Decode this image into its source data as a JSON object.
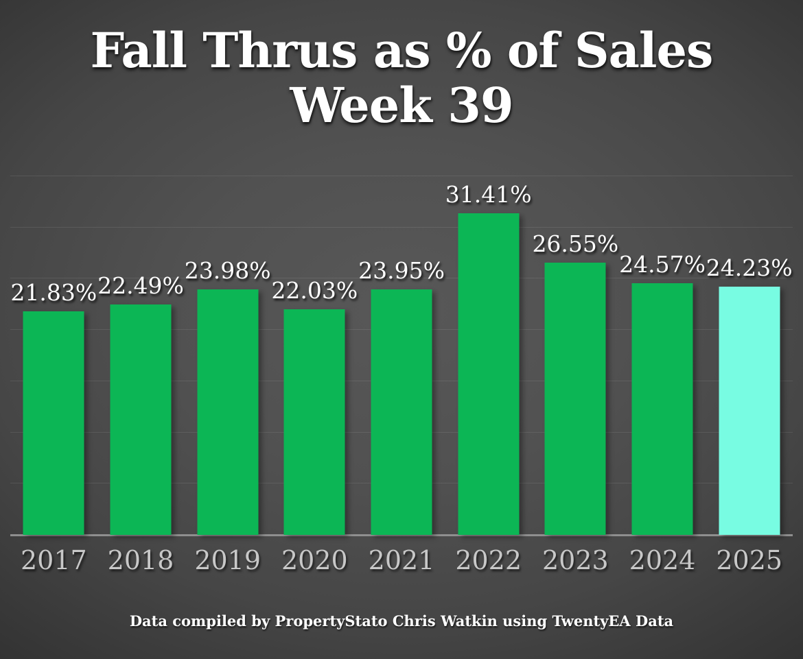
{
  "title": {
    "line1": "Fall Thrus as % of Sales",
    "line2": "Week 39"
  },
  "caption": "Data compiled by PropertyStato Chris Watkin using TwentyEA Data",
  "chart_data": {
    "type": "bar",
    "title": "Fall Thrus as % of Sales Week 39",
    "categories": [
      "2017",
      "2018",
      "2019",
      "2020",
      "2021",
      "2022",
      "2023",
      "2024",
      "2025"
    ],
    "values": [
      21.83,
      22.49,
      23.98,
      22.03,
      23.95,
      31.41,
      26.55,
      24.57,
      24.23
    ],
    "data_labels": [
      "21.83%",
      "22.49%",
      "23.98%",
      "22.03%",
      "23.95%",
      "31.41%",
      "26.55%",
      "24.57%",
      "24.23%"
    ],
    "xlabel": "",
    "ylabel": "",
    "ylim": [
      0,
      35
    ],
    "grid_step": 5,
    "grid": true,
    "legend": false,
    "bar_color": "#0cb655",
    "highlight_color": "#78fce2",
    "highlight_index": 8,
    "value_label_color": "#ffffff",
    "axis_tick_color": "#c8c8c8",
    "axis_line_color": "#8f8f8f",
    "background_center_color": "#585858",
    "background_edge_color": "#232323"
  }
}
